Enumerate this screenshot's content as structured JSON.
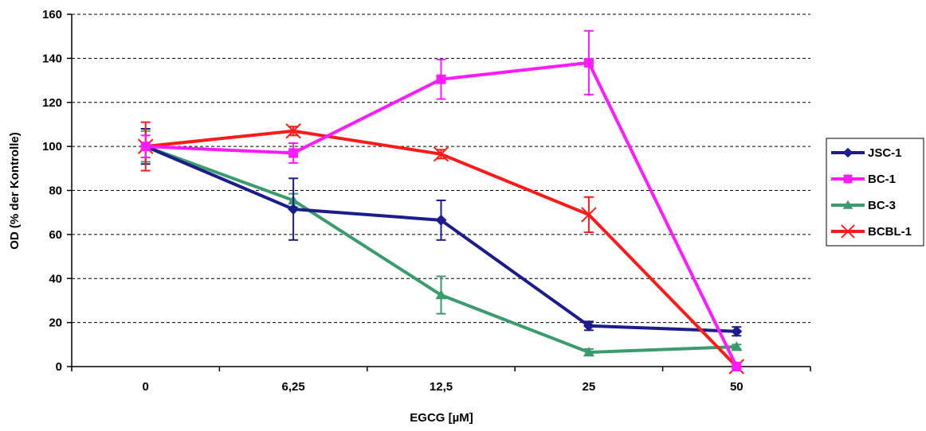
{
  "chart_data": {
    "type": "line",
    "title": "",
    "xlabel": "EGCG [µM]",
    "ylabel": "OD (% der Kontrolle)",
    "categories": [
      "0",
      "6,25",
      "12,5",
      "25",
      "50"
    ],
    "ylim": [
      0,
      160
    ],
    "yticks": [
      0,
      20,
      40,
      60,
      80,
      100,
      120,
      140,
      160
    ],
    "grid": "horizontal dashed",
    "legend_position": "right",
    "series": [
      {
        "name": "JSC-1",
        "color": "#1c1c8c",
        "marker": "diamond",
        "values": [
          100,
          71.5,
          66.5,
          18.5,
          16
        ],
        "errors": [
          8,
          14,
          9,
          2,
          2
        ]
      },
      {
        "name": "BC-1",
        "color": "#ff1aff",
        "marker": "square",
        "values": [
          100,
          97,
          130.5,
          138,
          0
        ],
        "errors": [
          5,
          4.5,
          9,
          14.5,
          0
        ]
      },
      {
        "name": "BC-3",
        "color": "#3a9b6e",
        "marker": "triangle",
        "values": [
          100,
          75.5,
          32.5,
          6.5,
          9
        ],
        "errors": [
          7,
          3,
          8.5,
          1.5,
          1
        ]
      },
      {
        "name": "BCBL-1",
        "color": "#ff1a1a",
        "marker": "x",
        "values": [
          100,
          107,
          96.5,
          69,
          0
        ],
        "errors": [
          11,
          2,
          2,
          8,
          0
        ]
      }
    ]
  }
}
